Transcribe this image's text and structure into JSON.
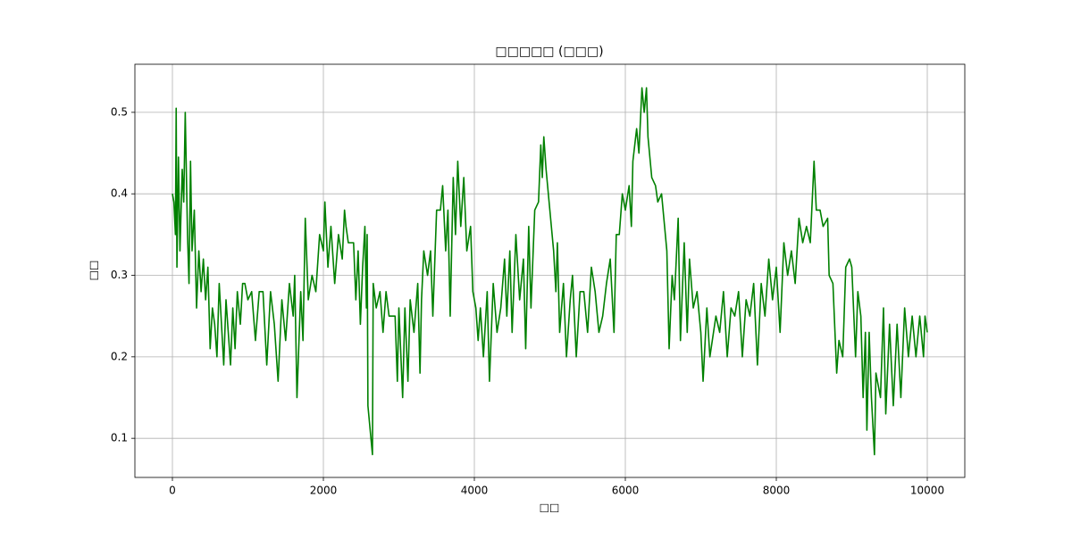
{
  "chart_data": {
    "type": "line",
    "title": "□□□□□ (□□□)",
    "xlabel": "□□",
    "ylabel": "□□",
    "xlim": [
      -497,
      10497
    ],
    "ylim": [
      0.052,
      0.559
    ],
    "xticks": [
      0,
      2000,
      4000,
      6000,
      8000,
      10000
    ],
    "yticks": [
      0.1,
      0.2,
      0.3,
      0.4,
      0.5
    ],
    "grid": true,
    "series": [
      {
        "color": "#008000",
        "x": [
          0,
          20,
          40,
          50,
          60,
          80,
          100,
          130,
          150,
          170,
          200,
          220,
          240,
          260,
          290,
          320,
          350,
          380,
          410,
          440,
          470,
          500,
          530,
          560,
          590,
          620,
          650,
          680,
          710,
          740,
          770,
          800,
          830,
          860,
          900,
          930,
          960,
          1000,
          1050,
          1100,
          1150,
          1200,
          1250,
          1300,
          1350,
          1400,
          1450,
          1500,
          1550,
          1600,
          1620,
          1650,
          1700,
          1730,
          1760,
          1800,
          1850,
          1900,
          1950,
          2000,
          2020,
          2060,
          2100,
          2150,
          2200,
          2250,
          2280,
          2300,
          2330,
          2400,
          2430,
          2460,
          2490,
          2520,
          2550,
          2570,
          2580,
          2590,
          2650,
          2660,
          2700,
          2750,
          2790,
          2830,
          2870,
          2950,
          2980,
          3000,
          3050,
          3080,
          3120,
          3150,
          3200,
          3250,
          3280,
          3300,
          3330,
          3380,
          3420,
          3450,
          3500,
          3550,
          3580,
          3620,
          3650,
          3680,
          3720,
          3750,
          3780,
          3820,
          3860,
          3900,
          3950,
          3980,
          4020,
          4050,
          4080,
          4120,
          4170,
          4200,
          4250,
          4300,
          4350,
          4400,
          4430,
          4470,
          4500,
          4550,
          4600,
          4650,
          4680,
          4720,
          4750,
          4800,
          4850,
          4880,
          4900,
          4920,
          4950,
          5000,
          5050,
          5080,
          5100,
          5130,
          5180,
          5220,
          5270,
          5300,
          5350,
          5400,
          5450,
          5500,
          5550,
          5600,
          5650,
          5700,
          5750,
          5800,
          5850,
          5880,
          5920,
          5960,
          6000,
          6050,
          6080,
          6100,
          6150,
          6180,
          6220,
          6250,
          6280,
          6300,
          6350,
          6400,
          6430,
          6480,
          6550,
          6580,
          6620,
          6650,
          6700,
          6730,
          6780,
          6820,
          6850,
          6900,
          6950,
          7000,
          7030,
          7080,
          7120,
          7200,
          7250,
          7300,
          7350,
          7400,
          7450,
          7500,
          7550,
          7600,
          7650,
          7700,
          7750,
          7800,
          7850,
          7900,
          7950,
          8000,
          8050,
          8100,
          8150,
          8200,
          8250,
          8300,
          8350,
          8400,
          8450,
          8500,
          8530,
          8580,
          8620,
          8680,
          8700,
          8750,
          8800,
          8830,
          8880,
          8920,
          8970,
          9000,
          9050,
          9080,
          9120,
          9150,
          9180,
          9200,
          9230,
          9260,
          9300,
          9320,
          9380,
          9420,
          9450,
          9500,
          9550,
          9600,
          9650,
          9700,
          9750,
          9800,
          9850,
          9900,
          9950,
          9970,
          10000
        ],
        "values": [
          0.4,
          0.39,
          0.35,
          0.505,
          0.31,
          0.445,
          0.33,
          0.43,
          0.39,
          0.5,
          0.35,
          0.29,
          0.44,
          0.33,
          0.38,
          0.26,
          0.33,
          0.28,
          0.32,
          0.27,
          0.31,
          0.21,
          0.26,
          0.24,
          0.2,
          0.29,
          0.24,
          0.19,
          0.27,
          0.23,
          0.19,
          0.26,
          0.21,
          0.28,
          0.24,
          0.29,
          0.29,
          0.27,
          0.28,
          0.22,
          0.28,
          0.28,
          0.19,
          0.28,
          0.24,
          0.17,
          0.27,
          0.22,
          0.29,
          0.25,
          0.3,
          0.15,
          0.28,
          0.22,
          0.37,
          0.27,
          0.3,
          0.28,
          0.35,
          0.33,
          0.39,
          0.31,
          0.36,
          0.29,
          0.35,
          0.32,
          0.38,
          0.36,
          0.34,
          0.34,
          0.27,
          0.33,
          0.24,
          0.31,
          0.36,
          0.26,
          0.35,
          0.14,
          0.08,
          0.29,
          0.26,
          0.28,
          0.23,
          0.28,
          0.25,
          0.25,
          0.17,
          0.26,
          0.15,
          0.26,
          0.17,
          0.27,
          0.23,
          0.29,
          0.18,
          0.27,
          0.33,
          0.3,
          0.33,
          0.25,
          0.38,
          0.38,
          0.41,
          0.33,
          0.38,
          0.25,
          0.42,
          0.35,
          0.44,
          0.36,
          0.42,
          0.33,
          0.36,
          0.28,
          0.26,
          0.22,
          0.26,
          0.2,
          0.28,
          0.17,
          0.29,
          0.23,
          0.26,
          0.32,
          0.25,
          0.33,
          0.23,
          0.35,
          0.27,
          0.32,
          0.21,
          0.36,
          0.26,
          0.38,
          0.39,
          0.46,
          0.42,
          0.47,
          0.43,
          0.38,
          0.33,
          0.28,
          0.34,
          0.23,
          0.29,
          0.2,
          0.27,
          0.3,
          0.2,
          0.28,
          0.28,
          0.23,
          0.31,
          0.28,
          0.23,
          0.25,
          0.29,
          0.32,
          0.23,
          0.35,
          0.35,
          0.4,
          0.38,
          0.41,
          0.36,
          0.44,
          0.48,
          0.45,
          0.53,
          0.5,
          0.53,
          0.47,
          0.42,
          0.41,
          0.39,
          0.4,
          0.33,
          0.21,
          0.3,
          0.27,
          0.37,
          0.22,
          0.34,
          0.23,
          0.32,
          0.26,
          0.28,
          0.23,
          0.17,
          0.26,
          0.2,
          0.25,
          0.23,
          0.28,
          0.2,
          0.26,
          0.25,
          0.28,
          0.2,
          0.27,
          0.25,
          0.29,
          0.19,
          0.29,
          0.25,
          0.32,
          0.27,
          0.31,
          0.23,
          0.34,
          0.3,
          0.33,
          0.29,
          0.37,
          0.34,
          0.36,
          0.34,
          0.44,
          0.38,
          0.38,
          0.36,
          0.37,
          0.3,
          0.29,
          0.18,
          0.22,
          0.2,
          0.31,
          0.32,
          0.31,
          0.2,
          0.28,
          0.25,
          0.15,
          0.23,
          0.11,
          0.23,
          0.15,
          0.08,
          0.18,
          0.15,
          0.26,
          0.13,
          0.24,
          0.14,
          0.24,
          0.15,
          0.26,
          0.2,
          0.25,
          0.2,
          0.25,
          0.2,
          0.25,
          0.23
        ]
      }
    ]
  }
}
